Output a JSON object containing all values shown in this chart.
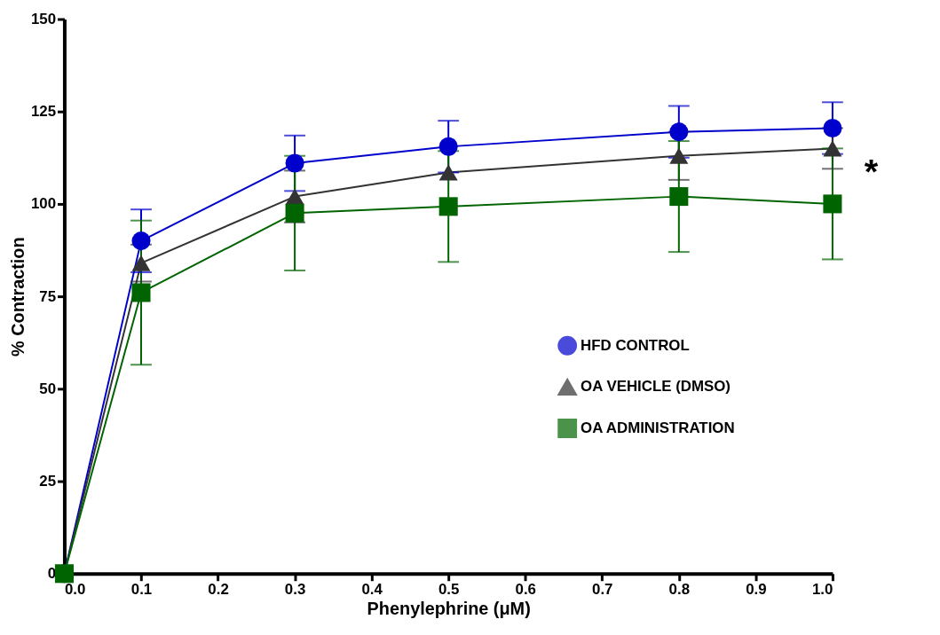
{
  "chart_data": {
    "type": "line",
    "xlabel": "Phenylephrine (μM)",
    "ylabel": "% Contraction",
    "x": [
      0,
      0.1,
      0.3,
      0.5,
      0.8,
      1.0
    ],
    "series": [
      {
        "name": "HFD CONTROL",
        "color": "#0000cc",
        "marker": "circle",
        "values": [
          0,
          90,
          111,
          115.5,
          119.5,
          120.5
        ],
        "errors": [
          null,
          8.5,
          7.5,
          7,
          7,
          7
        ]
      },
      {
        "name": "OA VEHICLE (DMSO)",
        "color": "#333333",
        "marker": "triangle",
        "values": [
          0,
          84,
          102,
          108.5,
          113,
          115
        ],
        "errors": [
          null,
          5,
          7,
          null,
          6.5,
          5.5
        ]
      },
      {
        "name": "OA ADMINISTRATION",
        "color": "#006400",
        "marker": "square",
        "values": [
          0,
          76,
          97.5,
          99.3,
          102,
          100
        ],
        "errors": [
          null,
          19.5,
          15.5,
          15,
          15,
          15
        ]
      }
    ],
    "xlim": [
      0,
      1.0
    ],
    "ylim": [
      0,
      150
    ],
    "xticks": [
      {
        "value": 0,
        "label": "0.0"
      },
      0.1,
      0.2,
      0.3,
      0.4,
      0.5,
      0.6,
      0.7,
      0.8,
      0.9,
      {
        "value": 1.0,
        "label": "1.0"
      }
    ],
    "yticks": [
      0,
      25,
      50,
      75,
      100,
      125,
      150
    ],
    "annotations": [
      "*"
    ],
    "grid": false,
    "legend": "right",
    "line_style": "solid"
  }
}
